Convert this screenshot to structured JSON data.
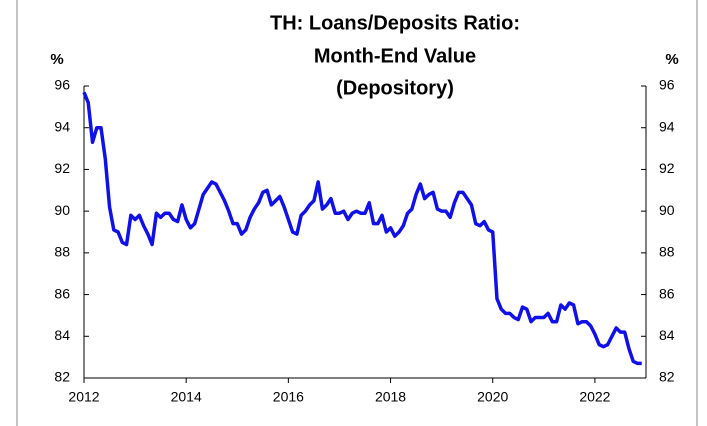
{
  "chart_data": {
    "type": "line",
    "title": [
      "TH: Loans/Deposits Ratio:",
      "Month-End Value",
      "(Depository)"
    ],
    "y_label": "%",
    "y2_label": "%",
    "xlim": [
      2012,
      2023
    ],
    "xticks": [
      2012,
      2014,
      2016,
      2018,
      2020,
      2022
    ],
    "ylim": [
      82,
      96
    ],
    "yticks": [
      82,
      84,
      86,
      88,
      90,
      92,
      94,
      96
    ],
    "y2lim": [
      82,
      96
    ],
    "y2ticks": [
      82,
      84,
      86,
      88,
      90,
      92,
      94,
      96
    ],
    "x": [
      2012,
      2012.083,
      2012.167,
      2012.25,
      2012.333,
      2012.417,
      2012.5,
      2012.583,
      2012.667,
      2012.75,
      2012.833,
      2012.917,
      2013,
      2013.083,
      2013.167,
      2013.25,
      2013.333,
      2013.417,
      2013.5,
      2013.583,
      2013.667,
      2013.75,
      2013.833,
      2013.917,
      2014,
      2014.083,
      2014.167,
      2014.25,
      2014.333,
      2014.417,
      2014.5,
      2014.583,
      2014.667,
      2014.75,
      2014.833,
      2014.917,
      2015,
      2015.083,
      2015.167,
      2015.25,
      2015.333,
      2015.417,
      2015.5,
      2015.583,
      2015.667,
      2015.75,
      2015.833,
      2015.917,
      2016,
      2016.083,
      2016.167,
      2016.25,
      2016.333,
      2016.417,
      2016.5,
      2016.583,
      2016.667,
      2016.75,
      2016.833,
      2016.917,
      2017,
      2017.083,
      2017.167,
      2017.25,
      2017.333,
      2017.417,
      2017.5,
      2017.583,
      2017.667,
      2017.75,
      2017.833,
      2017.917,
      2018,
      2018.083,
      2018.167,
      2018.25,
      2018.333,
      2018.417,
      2018.5,
      2018.583,
      2018.667,
      2018.75,
      2018.833,
      2018.917,
      2019,
      2019.083,
      2019.167,
      2019.25,
      2019.333,
      2019.417,
      2019.5,
      2019.583,
      2019.667,
      2019.75,
      2019.833,
      2019.917,
      2020,
      2020.083,
      2020.167,
      2020.25,
      2020.333,
      2020.417,
      2020.5,
      2020.583,
      2020.667,
      2020.75,
      2020.833,
      2020.917,
      2021,
      2021.083,
      2021.167,
      2021.25,
      2021.333,
      2021.417,
      2021.5,
      2021.583,
      2021.667,
      2021.75,
      2021.833,
      2021.917,
      2022,
      2022.083,
      2022.167,
      2022.25,
      2022.333,
      2022.417,
      2022.5,
      2022.583,
      2022.667,
      2022.75,
      2022.833,
      2022.917
    ],
    "series": [
      {
        "name": "Loans/Deposits Ratio",
        "color": "#1010e8",
        "values": [
          95.7,
          95.2,
          93.3,
          94.0,
          94.0,
          92.5,
          90.2,
          89.1,
          89.0,
          88.5,
          88.4,
          89.8,
          89.6,
          89.8,
          89.3,
          88.9,
          88.4,
          89.9,
          89.7,
          89.9,
          89.9,
          89.6,
          89.5,
          90.3,
          89.6,
          89.2,
          89.4,
          90.1,
          90.8,
          91.1,
          91.4,
          91.3,
          90.9,
          90.5,
          90.0,
          89.4,
          89.4,
          88.9,
          89.1,
          89.7,
          90.1,
          90.4,
          90.9,
          91.0,
          90.3,
          90.5,
          90.7,
          90.2,
          89.6,
          89.0,
          88.9,
          89.8,
          90.0,
          90.3,
          90.5,
          91.4,
          90.1,
          90.3,
          90.6,
          89.9,
          89.9,
          90.0,
          89.6,
          89.9,
          90.0,
          89.9,
          89.9,
          90.4,
          89.4,
          89.4,
          89.8,
          89.0,
          89.2,
          88.8,
          89.0,
          89.3,
          89.9,
          90.1,
          90.8,
          91.3,
          90.6,
          90.8,
          90.9,
          90.1,
          90.0,
          90.0,
          89.7,
          90.4,
          90.9,
          90.9,
          90.6,
          90.3,
          89.4,
          89.3,
          89.5,
          89.1,
          89.0,
          85.8,
          85.3,
          85.1,
          85.1,
          84.9,
          84.8,
          85.4,
          85.3,
          84.7,
          84.9,
          84.9,
          84.9,
          85.1,
          84.7,
          84.7,
          85.5,
          85.3,
          85.6,
          85.5,
          84.6,
          84.7,
          84.7,
          84.5,
          84.1,
          83.6,
          83.5,
          83.6,
          84.0,
          84.4,
          84.2,
          84.2,
          83.4,
          82.8,
          82.7,
          82.7
        ]
      }
    ]
  }
}
